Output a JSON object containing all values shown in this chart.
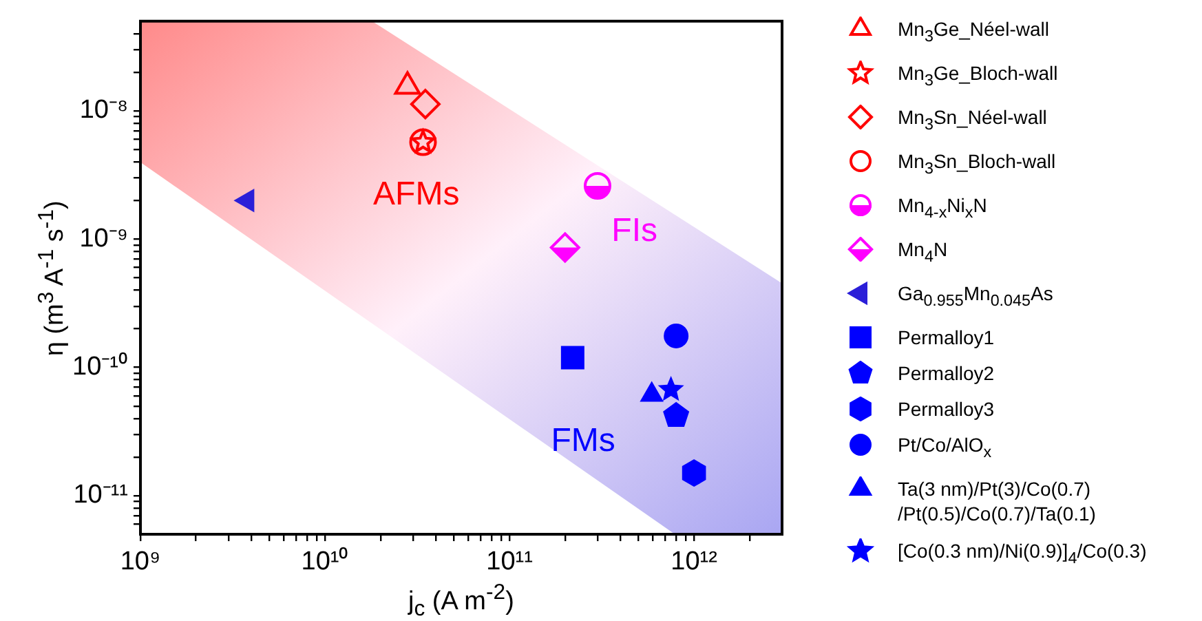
{
  "chart_data": {
    "type": "scatter",
    "xlabel": "j$_{c}$ (A m$^{-2}$)",
    "ylabel": "η (m$^{3}$ A$^{-1}$ s$^{-1}$)",
    "log": "xy",
    "grid": false,
    "legend": "right",
    "xlim": [
      1000000000.0,
      3000000000000.0
    ],
    "xticks": [
      {
        "value": 1000000000.0,
        "label": "10⁹"
      },
      {
        "value": 2000000000.0,
        "label": null
      },
      {
        "value": 3000000000.0,
        "label": null
      },
      {
        "value": 4000000000.0,
        "label": null
      },
      {
        "value": 5000000000.0,
        "label": null
      },
      {
        "value": 6000000000.0,
        "label": null
      },
      {
        "value": 7000000000.0,
        "label": null
      },
      {
        "value": 8000000000.0,
        "label": null
      },
      {
        "value": 9000000000.0,
        "label": null
      },
      {
        "value": 10000000000.0,
        "label": "10¹⁰"
      },
      {
        "value": 20000000000.0,
        "label": null
      },
      {
        "value": 30000000000.0,
        "label": null
      },
      {
        "value": 40000000000.0,
        "label": null
      },
      {
        "value": 50000000000.0,
        "label": null
      },
      {
        "value": 60000000000.0,
        "label": null
      },
      {
        "value": 70000000000.0,
        "label": null
      },
      {
        "value": 80000000000.0,
        "label": null
      },
      {
        "value": 90000000000.0,
        "label": null
      },
      {
        "value": 100000000000.0,
        "label": "10¹¹"
      },
      {
        "value": 200000000000.0,
        "label": null
      },
      {
        "value": 300000000000.0,
        "label": null
      },
      {
        "value": 400000000000.0,
        "label": null
      },
      {
        "value": 500000000000.0,
        "label": null
      },
      {
        "value": 600000000000.0,
        "label": null
      },
      {
        "value": 700000000000.0,
        "label": null
      },
      {
        "value": 800000000000.0,
        "label": null
      },
      {
        "value": 900000000000.0,
        "label": null
      },
      {
        "value": 1000000000000.0,
        "label": "10¹²"
      },
      {
        "value": 2000000000000.0,
        "label": null
      }
    ],
    "ylim": [
      5e-12,
      5e-08
    ],
    "yticks": [
      {
        "value": 6e-12,
        "label": null
      },
      {
        "value": 7e-12,
        "label": null
      },
      {
        "value": 8e-12,
        "label": null
      },
      {
        "value": 9e-12,
        "label": null
      },
      {
        "value": 1e-11,
        "label": "10⁻¹¹"
      },
      {
        "value": 2e-11,
        "label": null
      },
      {
        "value": 3e-11,
        "label": null
      },
      {
        "value": 4e-11,
        "label": null
      },
      {
        "value": 5e-11,
        "label": null
      },
      {
        "value": 6e-11,
        "label": null
      },
      {
        "value": 7e-11,
        "label": null
      },
      {
        "value": 8e-11,
        "label": null
      },
      {
        "value": 9e-11,
        "label": null
      },
      {
        "value": 1e-10,
        "label": "10⁻¹⁰"
      },
      {
        "value": 2e-10,
        "label": null
      },
      {
        "value": 3e-10,
        "label": null
      },
      {
        "value": 4e-10,
        "label": null
      },
      {
        "value": 5e-10,
        "label": null
      },
      {
        "value": 6e-10,
        "label": null
      },
      {
        "value": 7e-10,
        "label": null
      },
      {
        "value": 8e-10,
        "label": null
      },
      {
        "value": 9e-10,
        "label": null
      },
      {
        "value": 1e-09,
        "label": "10⁻⁹"
      },
      {
        "value": 2e-09,
        "label": null
      },
      {
        "value": 3e-09,
        "label": null
      },
      {
        "value": 4e-09,
        "label": null
      },
      {
        "value": 5e-09,
        "label": null
      },
      {
        "value": 6e-09,
        "label": null
      },
      {
        "value": 7e-09,
        "label": null
      },
      {
        "value": 8e-09,
        "label": null
      },
      {
        "value": 9e-09,
        "label": null
      },
      {
        "value": 1e-08,
        "label": "10⁻⁸"
      },
      {
        "value": 2e-08,
        "label": null
      },
      {
        "value": 3e-08,
        "label": null
      },
      {
        "value": 4e-08,
        "label": null
      }
    ],
    "series": [
      {
        "name": "Mn$_{3}$Ge_Néel-wall",
        "color": "#ff0000",
        "x": [
          28000000000.0
        ],
        "values": [
          1.55e-08
        ]
      },
      {
        "name": "Mn$_{3}$Ge_Bloch-wall",
        "color": "#ff0000",
        "x": [
          34000000000.0
        ],
        "values": [
          5.7e-09
        ]
      },
      {
        "name": "Mn$_{3}$Sn_Néel-wall",
        "color": "#ff0000",
        "x": [
          35000000000.0
        ],
        "values": [
          1.13e-08
        ]
      },
      {
        "name": "Mn$_{3}$Sn_Bloch-wall",
        "color": "#ff0000",
        "x": [
          34000000000.0
        ],
        "values": [
          5.7e-09
        ]
      },
      {
        "name": "Mn$_{4-x}$Ni$_{x}$N",
        "color": "#ff00ff",
        "x": [
          300000000000.0
        ],
        "values": [
          2.6e-09
        ]
      },
      {
        "name": "Mn$_{4}$N",
        "color": "#ff00ff",
        "x": [
          200000000000.0
        ],
        "values": [
          8.6e-10
        ]
      },
      {
        "name": "Ga$_{0.955}$Mn$_{0.045}$As",
        "color": "#2b1fd8",
        "x": [
          3800000000.0
        ],
        "values": [
          2e-09
        ]
      },
      {
        "name": "Permalloy1",
        "color": "#0000ff",
        "x": [
          220000000000.0
        ],
        "values": [
          1.19e-10
        ]
      },
      {
        "name": "Permalloy2",
        "color": "#0000ff",
        "x": [
          800000000000.0
        ],
        "values": [
          4.2e-11
        ]
      },
      {
        "name": "Permalloy3",
        "color": "#0000ff",
        "x": [
          1000000000000.0
        ],
        "values": [
          1.5e-11
        ]
      },
      {
        "name": "Pt/Co/AlO$_{x}$",
        "color": "#0000ff",
        "x": [
          800000000000.0
        ],
        "values": [
          1.76e-10
        ]
      },
      {
        "name": "Ta(3 nm)/Pt(3)/Co(0.7)\n/Pt(0.5)/Co(0.7)/Ta(0.1)",
        "color": "#0000ff",
        "x": [
          590000000000.0
        ],
        "values": [
          6.1e-11
        ]
      },
      {
        "name": "[Co(0.3 nm)/Ni(0.9)]$_{4}$/Co(0.3)",
        "color": "#0000ff",
        "x": [
          750000000000.0
        ],
        "values": [
          6.7e-11
        ]
      }
    ],
    "annotations": [
      "AFMs",
      "FIs",
      "FMs"
    ]
  }
}
